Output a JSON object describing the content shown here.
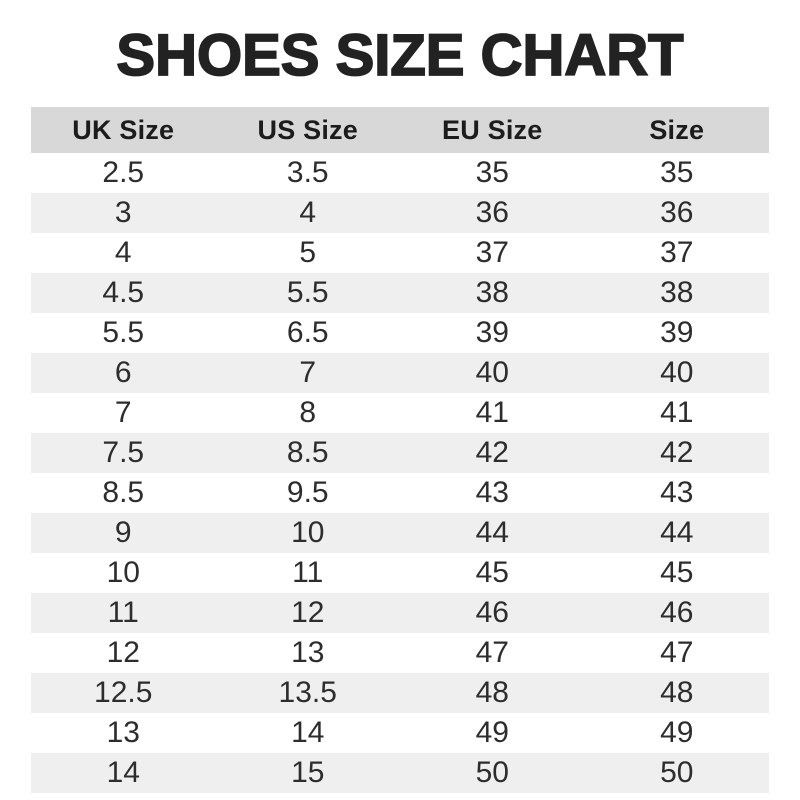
{
  "title": "SHOES SIZE CHART",
  "colors": {
    "page_bg": "#ffffff",
    "title_text": "#222222",
    "header_bg": "#d8d8d8",
    "header_text": "#1c1c1c",
    "row_alt_bg": "#efefef",
    "row_text": "#2d2d2d"
  },
  "table": {
    "headers": [
      "UK Size",
      "US Size",
      "EU Size",
      "Size"
    ],
    "rows": [
      [
        "2.5",
        "3.5",
        "35",
        "35"
      ],
      [
        "3",
        "4",
        "36",
        "36"
      ],
      [
        "4",
        "5",
        "37",
        "37"
      ],
      [
        "4.5",
        "5.5",
        "38",
        "38"
      ],
      [
        "5.5",
        "6.5",
        "39",
        "39"
      ],
      [
        "6",
        "7",
        "40",
        "40"
      ],
      [
        "7",
        "8",
        "41",
        "41"
      ],
      [
        "7.5",
        "8.5",
        "42",
        "42"
      ],
      [
        "8.5",
        "9.5",
        "43",
        "43"
      ],
      [
        "9",
        "10",
        "44",
        "44"
      ],
      [
        "10",
        "11",
        "45",
        "45"
      ],
      [
        "11",
        "12",
        "46",
        "46"
      ],
      [
        "12",
        "13",
        "47",
        "47"
      ],
      [
        "12.5",
        "13.5",
        "48",
        "48"
      ],
      [
        "13",
        "14",
        "49",
        "49"
      ],
      [
        "14",
        "15",
        "50",
        "50"
      ]
    ]
  },
  "chart_data": {
    "type": "table",
    "title": "SHOES SIZE CHART",
    "columns": [
      "UK Size",
      "US Size",
      "EU Size",
      "Size"
    ],
    "rows": [
      [
        "2.5",
        "3.5",
        "35",
        "35"
      ],
      [
        "3",
        "4",
        "36",
        "36"
      ],
      [
        "4",
        "5",
        "37",
        "37"
      ],
      [
        "4.5",
        "5.5",
        "38",
        "38"
      ],
      [
        "5.5",
        "6.5",
        "39",
        "39"
      ],
      [
        "6",
        "7",
        "40",
        "40"
      ],
      [
        "7",
        "8",
        "41",
        "41"
      ],
      [
        "7.5",
        "8.5",
        "42",
        "42"
      ],
      [
        "8.5",
        "9.5",
        "43",
        "43"
      ],
      [
        "9",
        "10",
        "44",
        "44"
      ],
      [
        "10",
        "11",
        "45",
        "45"
      ],
      [
        "11",
        "12",
        "46",
        "46"
      ],
      [
        "12",
        "13",
        "47",
        "47"
      ],
      [
        "12.5",
        "13.5",
        "48",
        "48"
      ],
      [
        "13",
        "14",
        "49",
        "49"
      ],
      [
        "14",
        "15",
        "50",
        "50"
      ]
    ],
    "layout": {
      "striped_rows": true,
      "header_background": "#d8d8d8",
      "stripe_background": "#efefef"
    }
  }
}
